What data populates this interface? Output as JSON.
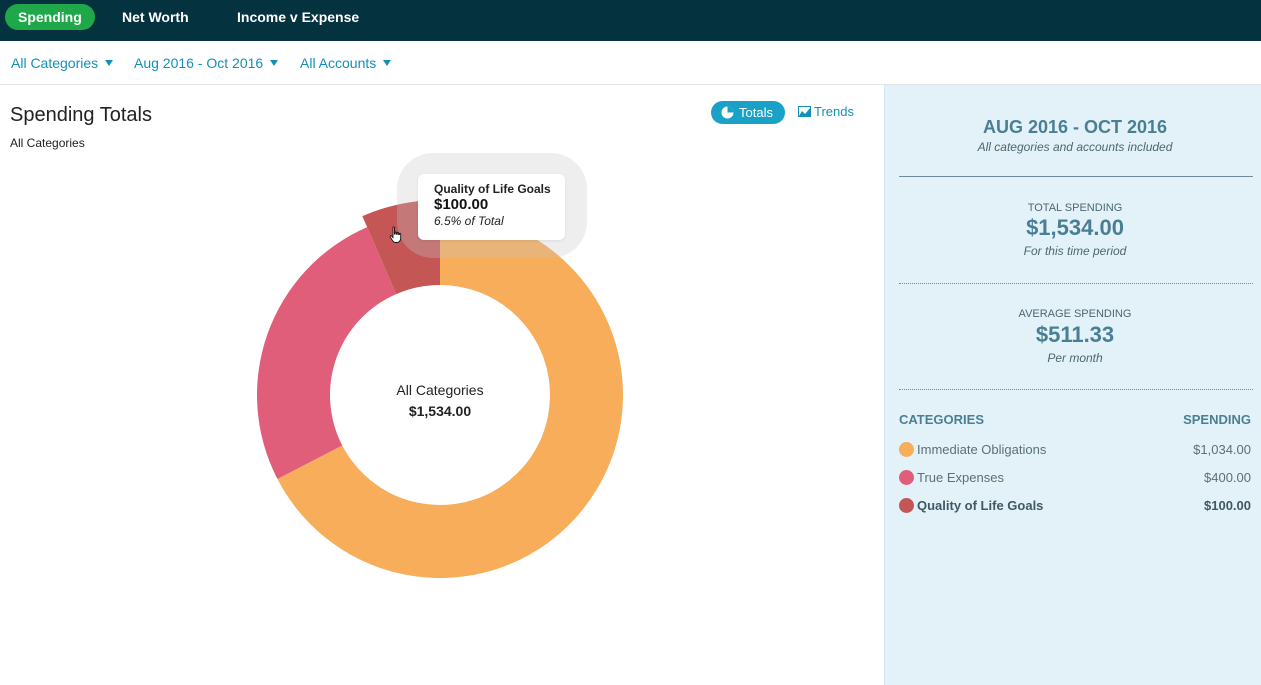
{
  "nav": {
    "tabs": [
      {
        "label": "Spending",
        "active": true
      },
      {
        "label": "Net Worth",
        "active": false
      },
      {
        "label": "Income v Expense",
        "active": false
      }
    ]
  },
  "filters": {
    "categories": "All Categories",
    "date_range": "Aug 2016 - Oct 2016",
    "accounts": "All Accounts"
  },
  "main": {
    "title": "Spending Totals",
    "subtitle": "All Categories",
    "view_buttons": {
      "totals": "Totals",
      "trends": "Trends"
    },
    "donut_center": {
      "label": "All Categories",
      "value": "$1,534.00"
    },
    "tooltip": {
      "name": "Quality of Life Goals",
      "value": "$100.00",
      "percent": "6.5% of Total"
    }
  },
  "sidebar": {
    "range_title": "AUG 2016 - OCT 2016",
    "range_note": "All categories and accounts included",
    "total": {
      "label": "TOTAL SPENDING",
      "value": "$1,534.00",
      "note": "For this time period"
    },
    "average": {
      "label": "AVERAGE SPENDING",
      "value": "$511.33",
      "note": "Per month"
    },
    "headers": {
      "categories": "CATEGORIES",
      "spending": "SPENDING"
    },
    "categories": [
      {
        "name": "Immediate Obligations",
        "amount": "$1,034.00",
        "color": "#f7ad59"
      },
      {
        "name": "True Expenses",
        "amount": "$400.00",
        "color": "#e15e7b"
      },
      {
        "name": "Quality of Life Goals",
        "amount": "$100.00",
        "color": "#c55656"
      }
    ]
  },
  "colors": {
    "nav_bg": "#04323f",
    "active_tab": "#1ea84a",
    "link": "#1390b7",
    "sidebar_bg": "#e3f2f8"
  },
  "chart_data": {
    "type": "pie",
    "categories": [
      "Immediate Obligations",
      "True Expenses",
      "Quality of Life Goals"
    ],
    "values": [
      1034,
      400,
      100
    ],
    "colors": [
      "#f7ad59",
      "#e15e7b",
      "#c55656"
    ],
    "highlighted": "Quality of Life Goals"
  }
}
